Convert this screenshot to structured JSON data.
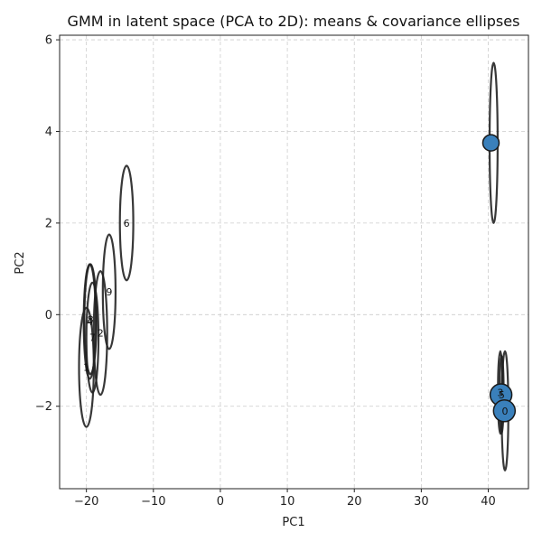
{
  "chart_data": {
    "type": "scatter",
    "title": "GMM in latent space (PCA to 2D): means & covariance ellipses",
    "xlabel": "PC1",
    "ylabel": "PC2",
    "xlim": [
      -24,
      46
    ],
    "ylim": [
      -3.8,
      6.1
    ],
    "xticks": [
      -20,
      -10,
      0,
      10,
      20,
      30,
      40
    ],
    "yticks": [
      -2,
      0,
      2,
      4,
      6
    ],
    "grid": true,
    "colors": {
      "ellipse": "#222222",
      "mean_fill": "#3a80bb",
      "mean_edge": "#1a1a1a",
      "grid": "#cccccc"
    },
    "components": [
      {
        "label": "0",
        "mean_x": 42.5,
        "mean_y": -2.1,
        "rx": 0.5,
        "ry": 1.3
      },
      {
        "label": "1",
        "mean_x": -20.0,
        "mean_y": -1.15,
        "rx": 1.1,
        "ry": 1.3
      },
      {
        "label": "2",
        "mean_x": -17.9,
        "mean_y": -0.4,
        "rx": 1.0,
        "ry": 1.35
      },
      {
        "label": "3",
        "mean_x": 41.8,
        "mean_y": -1.7,
        "rx": 0.35,
        "ry": 0.9
      },
      {
        "label": "4",
        "mean_x": -19.5,
        "mean_y": -0.15,
        "rx": 0.9,
        "ry": 1.25
      },
      {
        "label": "5",
        "mean_x": 42.0,
        "mean_y": -1.75,
        "rx": 0.3,
        "ry": 0.85
      },
      {
        "label": "6",
        "mean_x": -14.0,
        "mean_y": 2.0,
        "rx": 1.0,
        "ry": 1.25
      },
      {
        "label": "7",
        "mean_x": -19.1,
        "mean_y": -0.5,
        "rx": 0.9,
        "ry": 1.2
      },
      {
        "label": "8",
        "mean_x": -19.4,
        "mean_y": -0.1,
        "rx": 0.9,
        "ry": 1.2
      },
      {
        "label": "9",
        "mean_x": -16.6,
        "mean_y": 0.5,
        "rx": 0.95,
        "ry": 1.25
      },
      {
        "label": "",
        "mean_x": 40.8,
        "mean_y": 3.75,
        "rx": 0.6,
        "ry": 1.75
      }
    ],
    "means_markers": [
      {
        "x": 40.4,
        "y": 3.75,
        "size": 9
      },
      {
        "x": 41.9,
        "y": -1.75,
        "size": 12
      },
      {
        "x": 42.4,
        "y": -2.1,
        "size": 12
      }
    ]
  }
}
